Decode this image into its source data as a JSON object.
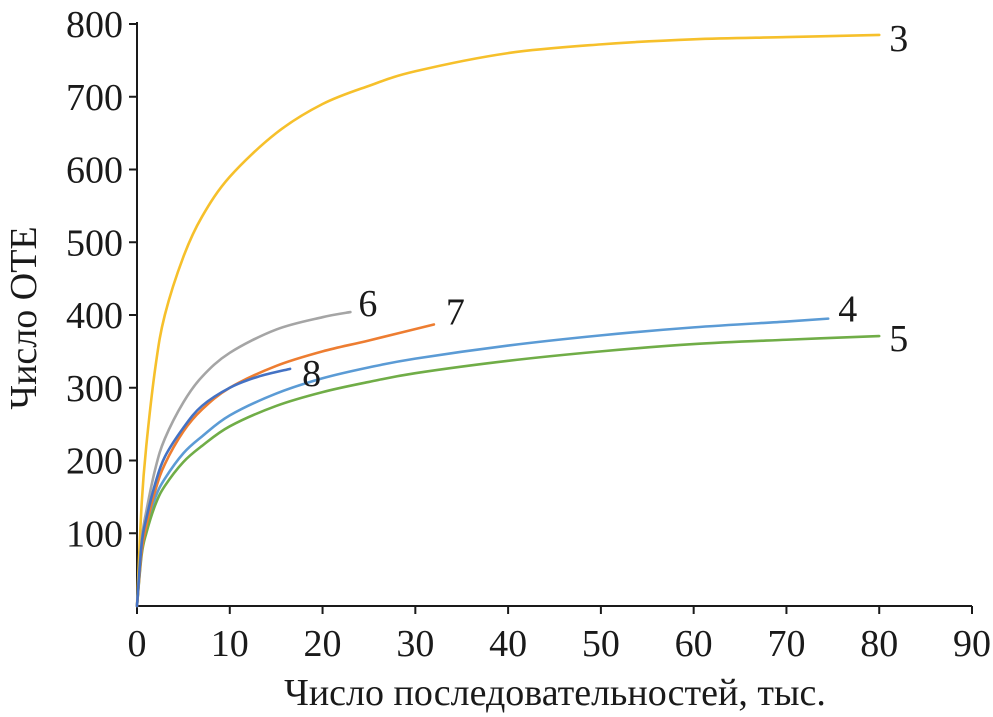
{
  "chart_data": {
    "type": "line",
    "title": "",
    "xlabel": "Число последовательностей, тыс.",
    "ylabel": "Число ОТЕ",
    "xlim": [
      0,
      90
    ],
    "ylim": [
      0,
      800
    ],
    "xticks": [
      0,
      10,
      20,
      30,
      40,
      50,
      60,
      70,
      80,
      90
    ],
    "yticks": [
      100,
      200,
      300,
      400,
      500,
      600,
      700,
      800
    ],
    "grid": false,
    "legend": "none",
    "series": [
      {
        "name": "3",
        "color": "#F6C02B",
        "x": [
          0,
          0.5,
          1,
          2,
          3,
          5,
          7,
          10,
          15,
          20,
          25,
          30,
          40,
          50,
          60,
          70,
          80
        ],
        "y": [
          0,
          140,
          220,
          330,
          400,
          480,
          535,
          590,
          650,
          690,
          715,
          735,
          760,
          772,
          779,
          782,
          785
        ]
      },
      {
        "name": "4",
        "color": "#5B9BD5",
        "x": [
          0,
          0.5,
          1,
          2,
          3,
          5,
          7,
          10,
          15,
          20,
          25,
          30,
          40,
          50,
          60,
          70,
          74.5
        ],
        "y": [
          0,
          80,
          110,
          150,
          175,
          210,
          233,
          262,
          292,
          313,
          328,
          340,
          358,
          372,
          383,
          391,
          395
        ]
      },
      {
        "name": "5",
        "color": "#70AD47",
        "x": [
          0,
          0.5,
          1,
          2,
          3,
          5,
          7,
          10,
          15,
          20,
          25,
          30,
          40,
          50,
          60,
          70,
          80
        ],
        "y": [
          0,
          70,
          100,
          140,
          165,
          198,
          220,
          247,
          275,
          294,
          308,
          320,
          337,
          350,
          360,
          366,
          371
        ]
      },
      {
        "name": "6",
        "color": "#A5A5A5",
        "x": [
          0,
          0.5,
          1,
          2,
          3,
          5,
          7,
          10,
          15,
          20,
          23
        ],
        "y": [
          0,
          90,
          130,
          190,
          230,
          280,
          315,
          348,
          380,
          397,
          404
        ]
      },
      {
        "name": "7",
        "color": "#ED7D31",
        "x": [
          0,
          0.5,
          1,
          2,
          3,
          5,
          7,
          10,
          15,
          20,
          25,
          32
        ],
        "y": [
          0,
          75,
          110,
          160,
          195,
          240,
          270,
          300,
          330,
          350,
          365,
          387
        ]
      },
      {
        "name": "8",
        "color": "#4472C4",
        "x": [
          0,
          0.5,
          1,
          2,
          3,
          5,
          7,
          10,
          13,
          16.5
        ],
        "y": [
          0,
          85,
          120,
          170,
          205,
          245,
          275,
          300,
          315,
          326
        ]
      }
    ]
  }
}
